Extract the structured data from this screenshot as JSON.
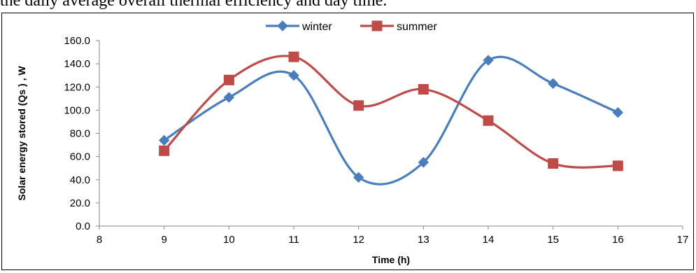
{
  "page_text": "the daily average overall thermal efficiency and day time.",
  "chart_data": {
    "type": "line",
    "title": "",
    "xlabel": "Time (h)",
    "ylabel": "Solar energy stored (Qs ) , W",
    "xlim": [
      8,
      17
    ],
    "ylim": [
      0,
      160
    ],
    "x_ticks": [
      "8",
      "9",
      "10",
      "11",
      "12",
      "13",
      "14",
      "15",
      "16",
      "17"
    ],
    "y_ticks": [
      "0.0",
      "20.0",
      "40.0",
      "60.0",
      "80.0",
      "100.0",
      "120.0",
      "140.0",
      "160.0"
    ],
    "legend_position": "top-center",
    "grid": false,
    "smoothed": true,
    "x": [
      9,
      10,
      11,
      12,
      13,
      14,
      15,
      16
    ],
    "series": [
      {
        "name": "winter",
        "color": "#4a7ebb",
        "marker": "diamond",
        "values": [
          74,
          111,
          130,
          42,
          55,
          143,
          123,
          98
        ]
      },
      {
        "name": "summer",
        "color": "#be4b48",
        "marker": "square",
        "values": [
          65,
          126,
          146,
          104,
          118,
          91,
          54,
          52
        ]
      }
    ]
  }
}
